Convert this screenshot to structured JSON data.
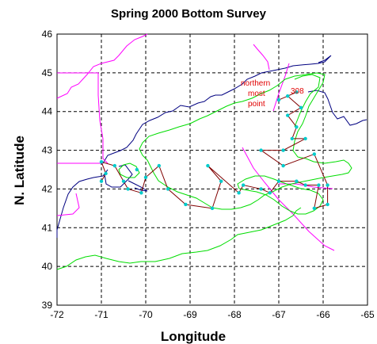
{
  "title": "Spring 2000 Bottom Survey",
  "x_axis_label": "Longitude",
  "y_axis_label": "N. Latitude",
  "x_ticks": [
    "-72",
    "-71",
    "-70",
    "-69",
    "-68",
    "-67",
    "-66",
    "-65"
  ],
  "y_ticks": [
    "39",
    "40",
    "41",
    "42",
    "43",
    "44",
    "45",
    "46"
  ],
  "annotations": {
    "northern_1": "northern",
    "northern_2": "most",
    "northern_3": "point",
    "station_id": "308"
  },
  "colors": {
    "coastline": "#000080",
    "boundary": "#ff00ff",
    "depth_contour": "#00dd00",
    "cruise_track": "#800000",
    "stations": "#00cccc",
    "annotation": "#e00000",
    "grid": "#000000"
  },
  "chart_data": {
    "type": "map",
    "xlim": [
      -72,
      -65
    ],
    "ylim": [
      39,
      46
    ],
    "grid": true,
    "stations": [
      [
        -70.5,
        42.2
      ],
      [
        -70.4,
        42.0
      ],
      [
        -70.1,
        41.9
      ],
      [
        -70.0,
        42.3
      ],
      [
        -69.7,
        42.6
      ],
      [
        -69.5,
        42.0
      ],
      [
        -69.1,
        41.6
      ],
      [
        -68.5,
        41.5
      ],
      [
        -68.6,
        42.6
      ],
      [
        -68.3,
        42.2
      ],
      [
        -67.9,
        41.9
      ],
      [
        -67.8,
        42.1
      ],
      [
        -67.4,
        42.0
      ],
      [
        -67.2,
        41.9
      ],
      [
        -67.0,
        42.2
      ],
      [
        -66.6,
        42.2
      ],
      [
        -66.4,
        42.1
      ],
      [
        -66.1,
        42.1
      ],
      [
        -66.2,
        41.5
      ],
      [
        -65.9,
        41.6
      ],
      [
        -65.9,
        42.1
      ],
      [
        -66.9,
        42.6
      ],
      [
        -67.4,
        43.0
      ],
      [
        -66.9,
        43.0
      ],
      [
        -66.4,
        43.3
      ],
      [
        -66.6,
        43.6
      ],
      [
        -66.8,
        43.9
      ],
      [
        -66.5,
        44.1
      ],
      [
        -66.8,
        44.4
      ],
      [
        -66.6,
        44.5
      ],
      [
        -67.0,
        44.3
      ],
      [
        -66.7,
        43.3
      ],
      [
        -66.2,
        42.9
      ],
      [
        -70.9,
        42.4
      ],
      [
        -71.0,
        42.7
      ],
      [
        -70.7,
        42.6
      ],
      [
        -70.2,
        42.5
      ],
      [
        -71.0,
        42.2
      ]
    ],
    "cruise_track": [
      [
        -71.0,
        42.2
      ],
      [
        -70.9,
        42.4
      ],
      [
        -71.0,
        42.7
      ],
      [
        -70.7,
        42.6
      ],
      [
        -70.5,
        42.2
      ],
      [
        -70.4,
        42.0
      ],
      [
        -70.1,
        41.9
      ],
      [
        -70.0,
        42.3
      ],
      [
        -69.7,
        42.6
      ],
      [
        -69.5,
        42.0
      ],
      [
        -69.1,
        41.6
      ],
      [
        -68.5,
        41.5
      ],
      [
        -68.3,
        42.2
      ],
      [
        -68.6,
        42.6
      ],
      [
        -67.9,
        41.9
      ],
      [
        -67.8,
        42.1
      ],
      [
        -67.4,
        42.0
      ],
      [
        -67.2,
        41.9
      ],
      [
        -67.0,
        42.2
      ],
      [
        -66.6,
        42.2
      ],
      [
        -66.4,
        42.1
      ],
      [
        -66.1,
        42.1
      ],
      [
        -66.2,
        41.5
      ],
      [
        -65.9,
        41.6
      ],
      [
        -65.9,
        42.1
      ],
      [
        -66.2,
        42.9
      ],
      [
        -66.9,
        42.6
      ],
      [
        -67.4,
        43.0
      ],
      [
        -66.9,
        43.0
      ],
      [
        -66.4,
        43.3
      ],
      [
        -66.7,
        43.3
      ],
      [
        -66.6,
        43.6
      ],
      [
        -66.8,
        43.9
      ],
      [
        -66.5,
        44.1
      ],
      [
        -66.8,
        44.4
      ],
      [
        -66.6,
        44.5
      ],
      [
        -67.0,
        44.3
      ]
    ]
  }
}
